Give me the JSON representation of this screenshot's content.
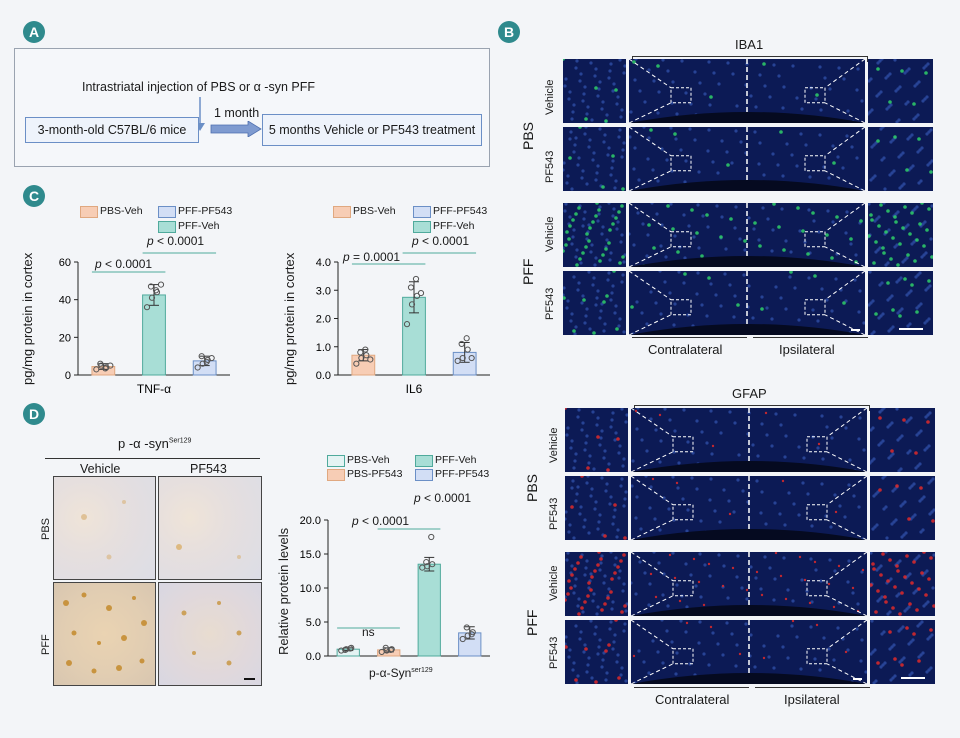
{
  "panel_labels": {
    "a": "A",
    "b": "B",
    "c": "C",
    "d": "D"
  },
  "panelA": {
    "injection": "Intrastriatal injection of PBS or α -syn PFF",
    "mice": "3-month-old C57BL/6 mice",
    "interval": "1 month",
    "treatment": "5 months Vehicle or PF543 treatment"
  },
  "panelC": {
    "ylabel": "pg/mg protein in cortex",
    "legend": [
      {
        "label": "PBS-Veh",
        "color": "#f7cdb5"
      },
      {
        "label": "PFF-PF543",
        "color": "#d2def5"
      },
      {
        "label": "PFF-Veh",
        "color": "#a8ded6"
      }
    ],
    "p1_prefix": "p",
    "p1_rest": " < 0.0001",
    "p2_prefix": "p",
    "p2_rest": " < 0.0001",
    "p3_prefix": "p",
    "p3_rest": " = 0.0001",
    "p4_prefix": "p",
    "p4_rest": " < 0.0001"
  },
  "panelD": {
    "stain_title": "p -α -syn",
    "stain_sup": "Ser129",
    "col_vehicle": "Vehicle",
    "col_pf543": "PF543",
    "row_pbs": "PBS",
    "row_pff": "PFF",
    "ylabel": "Relative protein levels",
    "xlabel": "p-α-Syn",
    "xlabel_sup": "ser129",
    "legend": [
      {
        "label": "PBS-Veh",
        "color": "#e4f3f3"
      },
      {
        "label": "PFF-Veh",
        "color": "#a8ded6"
      },
      {
        "label": "PBS-PF543",
        "color": "#f7cdb5"
      },
      {
        "label": "PFF-PF543",
        "color": "#d2def5"
      }
    ],
    "p_ns": "ns",
    "p1_prefix": "p",
    "p1_rest": " < 0.0001",
    "p2_prefix": "p",
    "p2_rest": " < 0.0001"
  },
  "panelB": {
    "iba1": "IBA1",
    "gfap": "GFAP",
    "pbs": "PBS",
    "pff": "PFF",
    "vehicle": "Vehicle",
    "pf543": "PF543",
    "contralateral": "Contralateral",
    "ipsilateral": "Ipsilateral"
  },
  "chart_data": [
    {
      "type": "bar",
      "title": "TNF-α",
      "xlabel": "TNF-α",
      "ylabel": "pg/mg protein in cortex",
      "ylim": [
        0,
        60
      ],
      "yticks": [
        "0",
        "20",
        "40",
        "60"
      ],
      "categories": [
        "PBS-Veh",
        "PFF-Veh",
        "PFF-PF543"
      ],
      "values": [
        4.5,
        42.5,
        7.5
      ],
      "errors": [
        1.5,
        5.5,
        2.5
      ],
      "colors": [
        "#f7cdb5",
        "#a8ded6",
        "#d2def5"
      ],
      "points": [
        [
          3,
          5,
          4,
          6,
          3.5,
          5
        ],
        [
          36,
          41,
          44,
          47,
          45,
          48
        ],
        [
          4,
          6,
          8,
          10,
          7,
          9
        ]
      ]
    },
    {
      "type": "bar",
      "title": "IL6",
      "xlabel": "IL6",
      "ylabel": "pg/mg protein in cortex",
      "ylim": [
        0,
        4
      ],
      "yticks": [
        "0.0",
        "1.0",
        "2.0",
        "3.0",
        "4.0"
      ],
      "categories": [
        "PBS-Veh",
        "PFF-Veh",
        "PFF-PF543"
      ],
      "values": [
        0.7,
        2.75,
        0.8
      ],
      "errors": [
        0.2,
        0.55,
        0.35
      ],
      "colors": [
        "#f7cdb5",
        "#a8ded6",
        "#d2def5"
      ],
      "points": [
        [
          0.4,
          0.6,
          0.7,
          0.8,
          0.9,
          0.55
        ],
        [
          1.8,
          2.5,
          2.8,
          3.1,
          3.4,
          2.9
        ],
        [
          0.5,
          0.6,
          0.9,
          1.1,
          1.3,
          0.6
        ]
      ]
    },
    {
      "type": "bar",
      "title": "p-α-Syn ser129",
      "xlabel": "p-α-Syn ser129",
      "ylabel": "Relative protein levels",
      "ylim": [
        0,
        20
      ],
      "yticks": [
        "0.0",
        "5.0",
        "10.0",
        "15.0",
        "20.0"
      ],
      "categories": [
        "PBS-Veh",
        "PBS-PF543",
        "PFF-Veh",
        "PFF-PF543"
      ],
      "values": [
        1.0,
        0.9,
        13.5,
        3.4
      ],
      "errors": [
        0.2,
        0.3,
        1.0,
        0.9
      ],
      "colors": [
        "#e4f3f3",
        "#f7cdb5",
        "#a8ded6",
        "#d2def5"
      ],
      "points": [
        [
          0.8,
          1.0,
          1.2,
          0.9,
          1.1
        ],
        [
          0.6,
          0.8,
          1.0,
          1.2,
          0.9
        ],
        [
          13.0,
          13.2,
          13.5,
          13.8,
          17.5
        ],
        [
          2.5,
          3.0,
          3.5,
          4.2,
          3.2
        ]
      ]
    }
  ]
}
